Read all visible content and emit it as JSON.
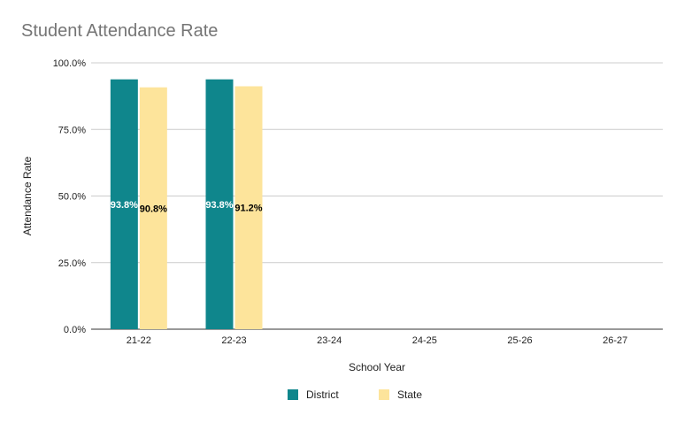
{
  "chart_data": {
    "type": "bar",
    "title": "Student Attendance Rate",
    "xlabel": "School Year",
    "ylabel": "Attendance Rate",
    "categories": [
      "21-22",
      "22-23",
      "23-24",
      "24-25",
      "25-26",
      "26-27"
    ],
    "ylim": [
      0,
      100
    ],
    "yticks": [
      0,
      25,
      50,
      75,
      100
    ],
    "ytick_labels": [
      "0.0%",
      "25.0%",
      "50.0%",
      "75.0%",
      "100.0%"
    ],
    "grid": true,
    "legend_position": "bottom",
    "series": [
      {
        "name": "District",
        "color": "#0F868C",
        "label_color": "#ffffff",
        "values": [
          93.8,
          93.8,
          null,
          null,
          null,
          null
        ],
        "data_labels": [
          "93.8%",
          "93.8%",
          "",
          "",
          "",
          ""
        ]
      },
      {
        "name": "State",
        "color": "#FDE49B",
        "label_color": "#000000",
        "values": [
          90.8,
          91.2,
          null,
          null,
          null,
          null
        ],
        "data_labels": [
          "90.8%",
          "91.2%",
          "",
          "",
          "",
          ""
        ]
      }
    ]
  }
}
